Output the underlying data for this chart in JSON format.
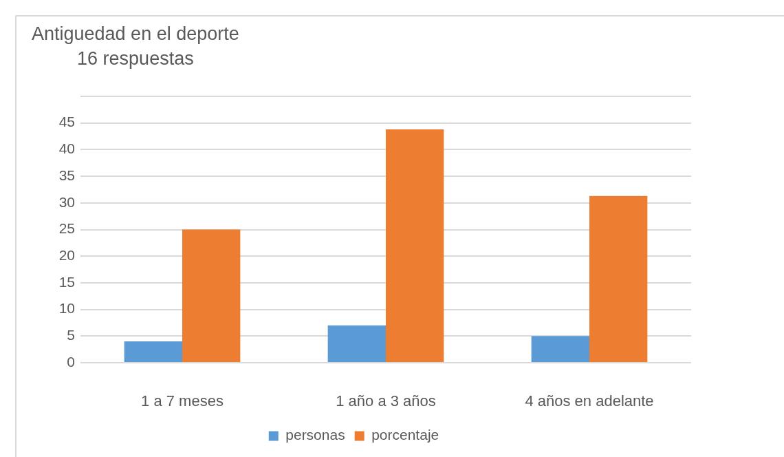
{
  "chart_data": {
    "type": "bar",
    "title": "Antiguedad en el deporte",
    "subtitle": "16 respuestas",
    "categories": [
      "1 a 7 meses",
      "1 año a 3 años",
      "4 años en adelante"
    ],
    "series": [
      {
        "name": "personas",
        "color": "#5b9bd5",
        "values": [
          4,
          7,
          5
        ]
      },
      {
        "name": "porcentaje",
        "color": "#ed7d31",
        "values": [
          25,
          43.8,
          31.3
        ]
      }
    ],
    "ylim": [
      0,
      50
    ],
    "yticks": [
      0,
      5,
      10,
      15,
      20,
      25,
      30,
      35,
      40,
      45,
      {
        "value": 50,
        "label": null
      }
    ],
    "grid": "y",
    "legend": "bottom"
  }
}
